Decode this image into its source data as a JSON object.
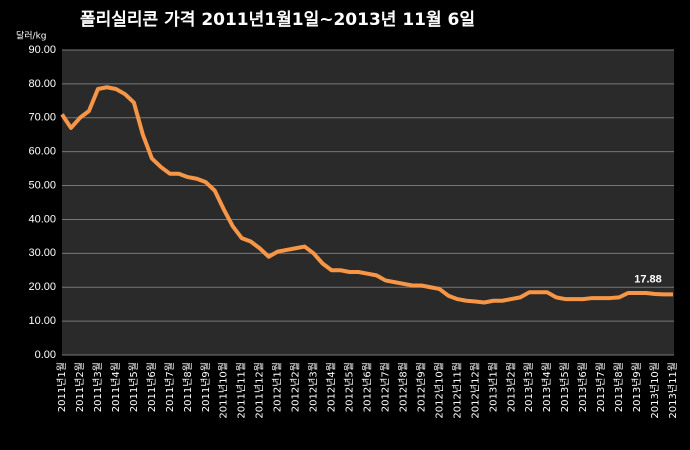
{
  "chart_data": {
    "type": "line",
    "title": "폴리실리콘 가격   2011년1월1일~2013년 11월 6일",
    "y_label": "달러/kg",
    "categories": [
      "2011년1월",
      null,
      "2011년2월",
      null,
      "2011년3월",
      null,
      "2011년4월",
      null,
      "2011년5월",
      null,
      "2011년6월",
      null,
      "2011년7월",
      null,
      "2011년8월",
      null,
      "2011년9월",
      null,
      "2011년10월",
      null,
      "2011년11월",
      null,
      "2011년12월",
      null,
      "2012년1월",
      null,
      "2012년2월",
      null,
      "2012년3월",
      null,
      "2012년4월",
      null,
      "2012년5월",
      null,
      "2012년6월",
      null,
      "2012년7월",
      null,
      "2012년8월",
      null,
      "2012년9월",
      null,
      "2012년10월",
      null,
      "2012년11월",
      null,
      "2012년12월",
      null,
      "2013년1월",
      null,
      "2013년2월",
      null,
      "2013년3월",
      null,
      "2013년4월",
      null,
      "2013년5월",
      null,
      "2013년6월",
      null,
      "2013년7월",
      null,
      "2013년8월",
      null,
      "2013년9월",
      null,
      "2013년10월",
      null,
      "2013년11월"
    ],
    "series": [
      {
        "name": "폴리실리콘",
        "color": "#f79646",
        "values": [
          71,
          67,
          70,
          72,
          78.5,
          79,
          78.5,
          77,
          74.5,
          65,
          58,
          55.5,
          53.5,
          53.5,
          52.5,
          52,
          51,
          48.5,
          43,
          38,
          34.5,
          33.5,
          31.5,
          29,
          30.5,
          31,
          31.5,
          32,
          30,
          27,
          25,
          25,
          24.5,
          24.5,
          24,
          23.5,
          22,
          21.5,
          21,
          20.5,
          20.5,
          20,
          19.5,
          17.5,
          16.5,
          16,
          15.8,
          15.5,
          16,
          16,
          16.5,
          17,
          18.5,
          18.5,
          18.5,
          17,
          16.5,
          16.5,
          16.5,
          16.8,
          16.8,
          16.8,
          17,
          18.3,
          18.3,
          18.3,
          18,
          17.9,
          17.88
        ]
      }
    ],
    "ylim": [
      0,
      90
    ],
    "yticks": [
      {
        "value": 0,
        "label": "0.00"
      },
      {
        "value": 10,
        "label": "10.00"
      },
      {
        "value": 20,
        "label": "20.00"
      },
      {
        "value": 30,
        "label": "30.00"
      },
      {
        "value": 40,
        "label": "40.00"
      },
      {
        "value": 50,
        "label": "50.00"
      },
      {
        "value": 60,
        "label": "60.00"
      },
      {
        "value": 70,
        "label": "70.00"
      },
      {
        "value": 80,
        "label": "80.00"
      },
      {
        "value": 90,
        "label": "90.00"
      }
    ],
    "grid": true
  }
}
